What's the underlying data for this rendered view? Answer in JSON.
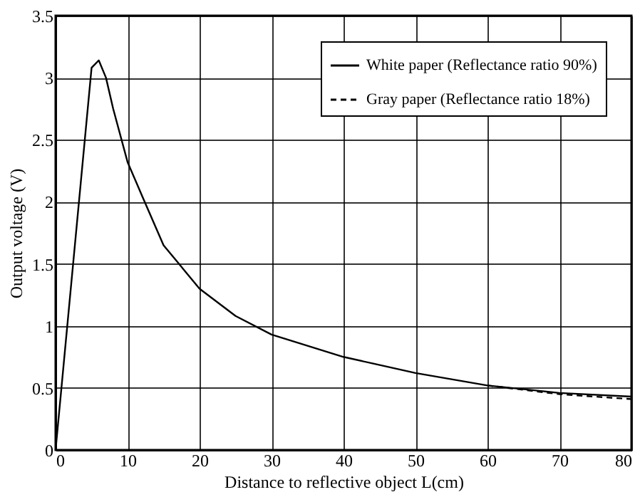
{
  "chart_data": {
    "type": "line",
    "xlabel": "Distance to reflective object L(cm)",
    "ylabel": "Output voltage (V)",
    "xlim": [
      0,
      80
    ],
    "xticks": [
      0,
      10,
      20,
      30,
      40,
      50,
      60,
      70,
      80
    ],
    "ylim": [
      0,
      3.5
    ],
    "yticks": [
      0,
      0.5,
      1,
      1.5,
      2,
      2.5,
      3,
      3.5
    ],
    "grid": true,
    "legend": "top right",
    "marker": "none",
    "series": [
      {
        "name": "White paper (Reflectance ratio 90%)",
        "color": "#000000",
        "line_style": "solid",
        "x": [
          0,
          5,
          6,
          7,
          8,
          10,
          12,
          15,
          20,
          25,
          30,
          40,
          50,
          60,
          70,
          80
        ],
        "values": [
          0,
          3.08,
          3.14,
          3.0,
          2.75,
          2.32,
          2.05,
          1.65,
          1.3,
          1.08,
          0.93,
          0.75,
          0.62,
          0.52,
          0.46,
          0.43
        ]
      },
      {
        "name": "Gray paper (Reflectance ratio 18%)",
        "color": "#000000",
        "line_style": "dashed",
        "x": [
          60,
          70,
          80
        ],
        "values": [
          0.52,
          0.45,
          0.41
        ]
      }
    ]
  }
}
